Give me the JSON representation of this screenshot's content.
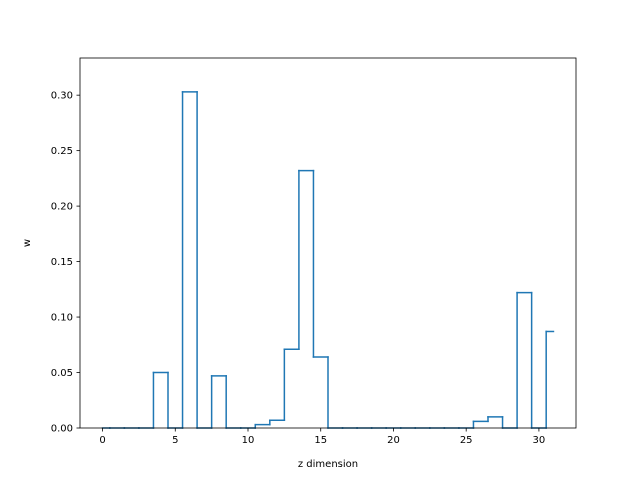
{
  "chart_data": {
    "type": "line",
    "drawstyle": "steps-mid",
    "title": "",
    "xlabel": "z dimension",
    "ylabel": "w",
    "xlim": [
      -1.55,
      32.55
    ],
    "ylim": [
      0.0,
      0.3335
    ],
    "xticks": [
      0,
      5,
      10,
      15,
      20,
      25,
      30
    ],
    "yticks": [
      0.0,
      0.05,
      0.1,
      0.15,
      0.2,
      0.25,
      0.3
    ],
    "ytick_labels": [
      "0.00",
      "0.05",
      "0.10",
      "0.15",
      "0.20",
      "0.25",
      "0.30"
    ],
    "grid": false,
    "series": [
      {
        "color": "#1f77b4",
        "x": [
          0,
          1,
          2,
          3,
          4,
          5,
          6,
          7,
          8,
          9,
          10,
          11,
          12,
          13,
          14,
          15,
          16,
          17,
          18,
          19,
          20,
          21,
          22,
          23,
          24,
          25,
          26,
          27,
          28,
          29,
          30,
          31
        ],
        "y": [
          0,
          0,
          0,
          0,
          0.05,
          0,
          0.303,
          0,
          0.047,
          0,
          0,
          0.003,
          0.007,
          0.071,
          0.232,
          0.064,
          0,
          0,
          0,
          0,
          0,
          0,
          0,
          0,
          0,
          0,
          0.006,
          0.01,
          0,
          0.122,
          0,
          0.087
        ]
      }
    ]
  }
}
